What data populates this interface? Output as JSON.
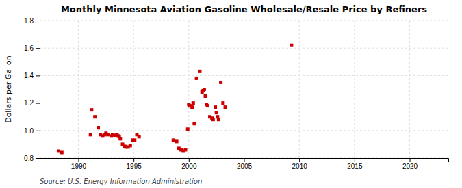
{
  "chart_data": {
    "type": "scatter",
    "title": "Monthly Minnesota Aviation Gasoline Wholesale/Resale Price by Refiners",
    "y_label": "Dollars per Gallon",
    "annotations": [
      "Source: U.S. Energy Information Administration"
    ],
    "color": "#cc0000",
    "marker": "square",
    "grid": true,
    "xlim": [
      1986.5,
      2023.5
    ],
    "ylim": [
      0.8,
      1.8
    ],
    "xticks": [
      1990,
      1995,
      2000,
      2005,
      2010,
      2015,
      2020
    ],
    "yticks": [
      0.8,
      {
        "value": 1.0,
        "label": "1.0"
      },
      1.2,
      1.4,
      1.6,
      1.8
    ],
    "x": [
      1988.2,
      1988.5,
      1991.1,
      1991.2,
      1991.5,
      1991.8,
      1992.0,
      1992.2,
      1992.4,
      1992.5,
      1992.7,
      1993.0,
      1993.1,
      1993.3,
      1993.5,
      1993.6,
      1993.7,
      1993.8,
      1994.0,
      1994.2,
      1994.3,
      1994.5,
      1994.7,
      1994.9,
      1995.1,
      1995.3,
      1995.5,
      1998.6,
      1998.9,
      1999.1,
      1999.3,
      1999.5,
      1999.7,
      1999.9,
      2000.0,
      2000.1,
      2000.3,
      2000.4,
      2000.5,
      2000.7,
      2001.0,
      2001.2,
      2001.3,
      2001.4,
      2001.5,
      2001.6,
      2001.7,
      2001.9,
      2002.1,
      2002.2,
      2002.4,
      2002.5,
      2002.6,
      2002.7,
      2002.9,
      2003.1,
      2003.3,
      2009.3
    ],
    "values": [
      0.85,
      0.84,
      0.97,
      1.15,
      1.1,
      1.02,
      0.97,
      0.96,
      0.97,
      0.98,
      0.97,
      0.96,
      0.97,
      0.965,
      0.97,
      0.96,
      0.955,
      0.94,
      0.9,
      0.885,
      0.88,
      0.88,
      0.89,
      0.93,
      0.93,
      0.97,
      0.955,
      0.93,
      0.92,
      0.87,
      0.86,
      0.85,
      0.86,
      1.01,
      1.19,
      1.18,
      1.17,
      1.2,
      1.05,
      1.38,
      1.43,
      1.28,
      1.29,
      1.3,
      1.25,
      1.19,
      1.18,
      1.1,
      1.09,
      1.08,
      1.17,
      1.13,
      1.1,
      1.08,
      1.35,
      1.2,
      1.17,
      1.62
    ]
  }
}
